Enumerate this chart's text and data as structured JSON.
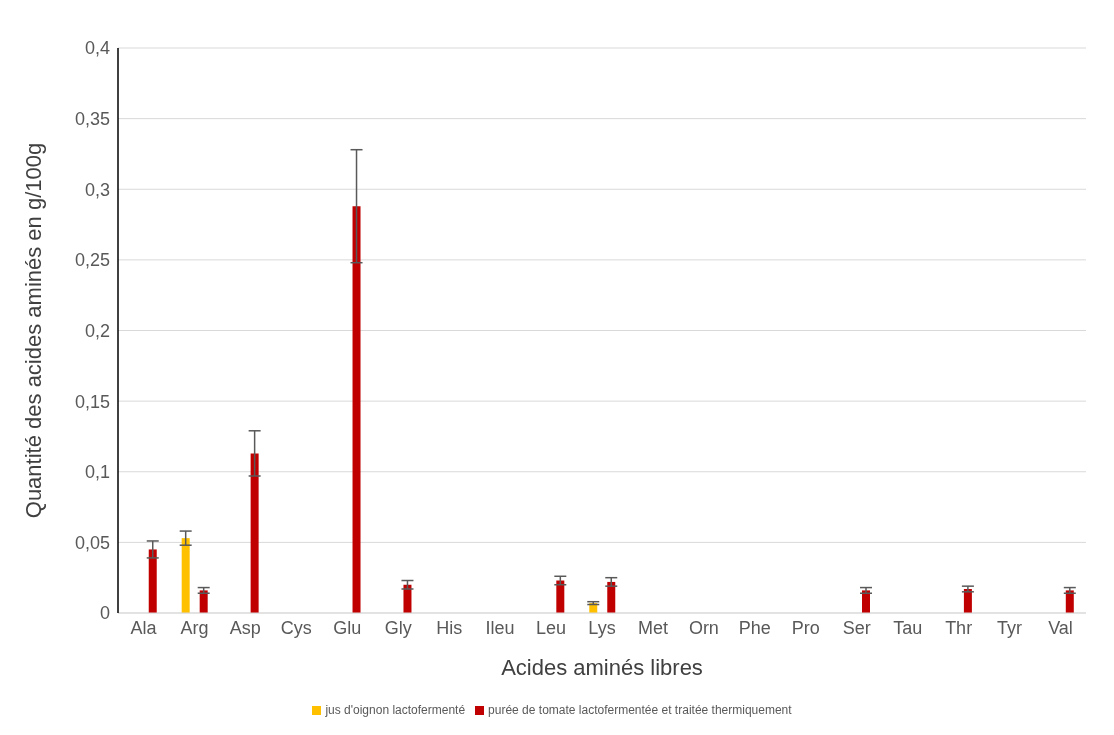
{
  "chart_data": {
    "type": "bar",
    "xlabel": "Acides aminés libres",
    "ylabel": "Quantité des acides aminés en g/100g",
    "categories": [
      "Ala",
      "Arg",
      "Asp",
      "Cys",
      "Glu",
      "Gly",
      "His",
      "Ileu",
      "Leu",
      "Lys",
      "Met",
      "Orn",
      "Phe",
      "Pro",
      "Ser",
      "Tau",
      "Thr",
      "Tyr",
      "Val"
    ],
    "series": [
      {
        "name": "jus d'oignon lactofermenté",
        "color": "#ffc000",
        "values": [
          null,
          0.053,
          null,
          null,
          null,
          null,
          null,
          null,
          null,
          0.007,
          null,
          null,
          null,
          null,
          null,
          null,
          null,
          null,
          null
        ],
        "errors": [
          null,
          0.005,
          null,
          null,
          null,
          null,
          null,
          null,
          null,
          0.001,
          null,
          null,
          null,
          null,
          null,
          null,
          null,
          null,
          null
        ]
      },
      {
        "name": "purée de tomate lactofermentée et traitée thermiquement",
        "color": "#c00000",
        "values": [
          0.045,
          0.016,
          0.113,
          null,
          0.288,
          0.02,
          null,
          null,
          0.023,
          0.022,
          null,
          null,
          null,
          null,
          0.016,
          null,
          0.017,
          null,
          0.016
        ],
        "errors": [
          0.006,
          0.002,
          0.016,
          null,
          0.04,
          0.003,
          null,
          null,
          0.003,
          0.003,
          null,
          null,
          null,
          null,
          0.002,
          null,
          0.002,
          null,
          0.002
        ]
      }
    ],
    "ylim": [
      0,
      0.4
    ],
    "yticks": [
      {
        "value": 0,
        "label": "0"
      },
      {
        "value": 0.05,
        "label": "0,05"
      },
      {
        "value": 0.1,
        "label": "0,1"
      },
      {
        "value": 0.15,
        "label": "0,15"
      },
      {
        "value": 0.2,
        "label": "0,2"
      },
      {
        "value": 0.25,
        "label": "0,25"
      },
      {
        "value": 0.3,
        "label": "0,3"
      },
      {
        "value": 0.35,
        "label": "0,35"
      },
      {
        "value": 0.4,
        "label": "0,4"
      }
    ],
    "grid": "y",
    "legend": "bottom"
  }
}
